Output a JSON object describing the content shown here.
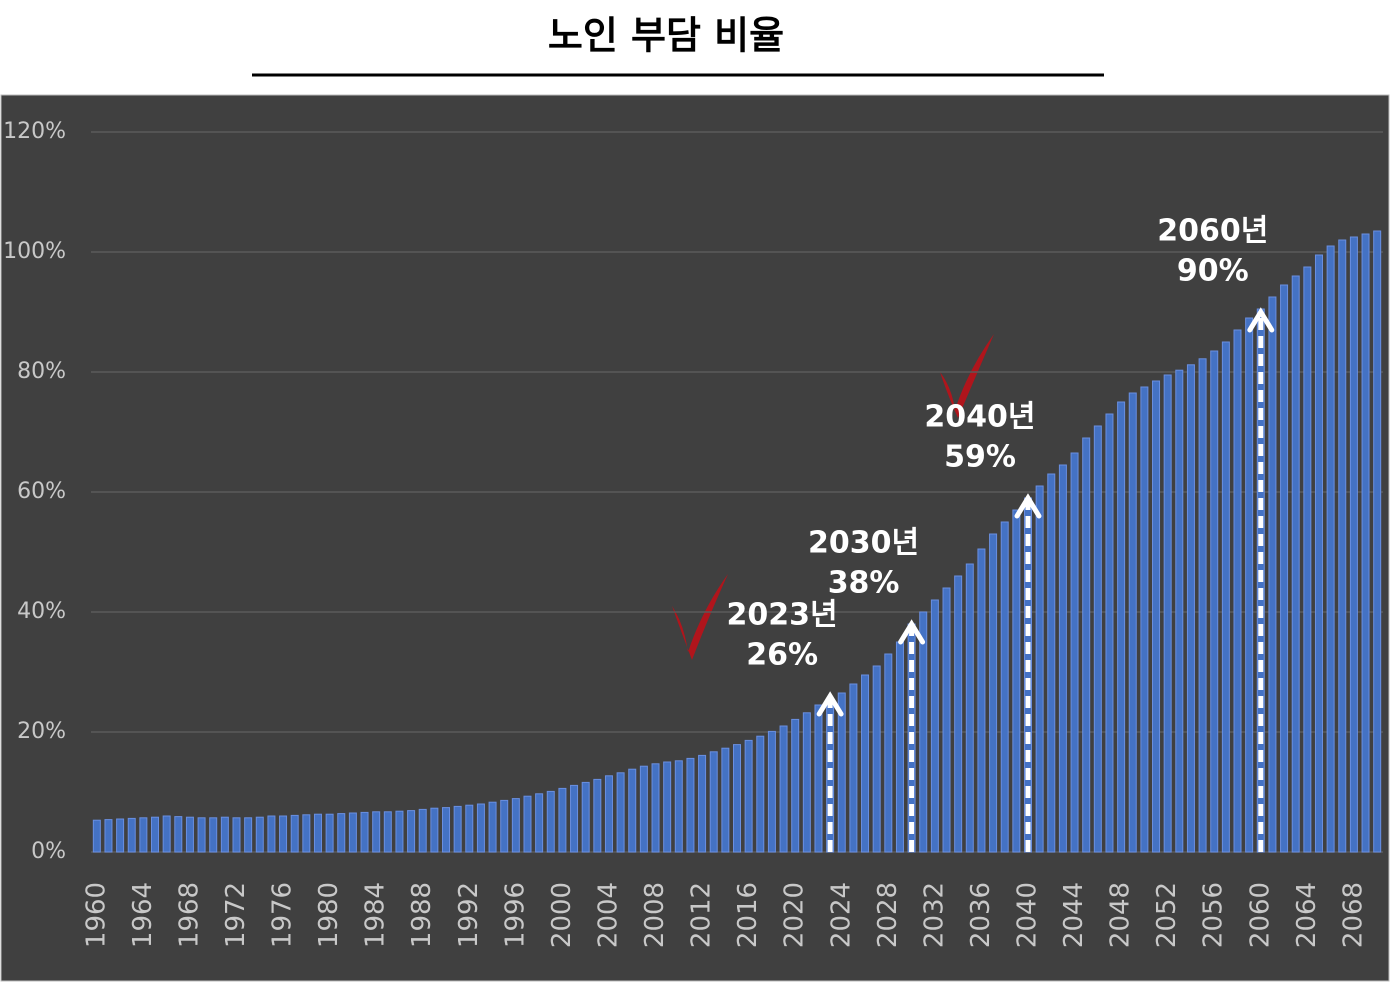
{
  "chart_data": {
    "type": "bar",
    "title": "노인 부담 비율",
    "x": [
      1960,
      1961,
      1962,
      1963,
      1964,
      1965,
      1966,
      1967,
      1968,
      1969,
      1970,
      1971,
      1972,
      1973,
      1974,
      1975,
      1976,
      1977,
      1978,
      1979,
      1980,
      1981,
      1982,
      1983,
      1984,
      1985,
      1986,
      1987,
      1988,
      1989,
      1990,
      1991,
      1992,
      1993,
      1994,
      1995,
      1996,
      1997,
      1998,
      1999,
      2000,
      2001,
      2002,
      2003,
      2004,
      2005,
      2006,
      2007,
      2008,
      2009,
      2010,
      2011,
      2012,
      2013,
      2014,
      2015,
      2016,
      2017,
      2018,
      2019,
      2020,
      2021,
      2022,
      2023,
      2024,
      2025,
      2026,
      2027,
      2028,
      2029,
      2030,
      2031,
      2032,
      2033,
      2034,
      2035,
      2036,
      2037,
      2038,
      2039,
      2040,
      2041,
      2042,
      2043,
      2044,
      2045,
      2046,
      2047,
      2048,
      2049,
      2050,
      2051,
      2052,
      2053,
      2054,
      2055,
      2056,
      2057,
      2058,
      2059,
      2060,
      2061,
      2062,
      2063,
      2064,
      2065,
      2066,
      2067,
      2068,
      2069,
      2070
    ],
    "values": [
      5.3,
      5.4,
      5.5,
      5.6,
      5.7,
      5.8,
      6.0,
      5.9,
      5.8,
      5.7,
      5.7,
      5.8,
      5.7,
      5.7,
      5.8,
      6.0,
      6.0,
      6.1,
      6.2,
      6.3,
      6.3,
      6.4,
      6.5,
      6.6,
      6.7,
      6.7,
      6.8,
      6.9,
      7.1,
      7.3,
      7.4,
      7.6,
      7.8,
      8.0,
      8.3,
      8.6,
      8.9,
      9.3,
      9.7,
      10.1,
      10.6,
      11.1,
      11.6,
      12.1,
      12.7,
      13.2,
      13.8,
      14.3,
      14.7,
      15.0,
      15.2,
      15.6,
      16.1,
      16.7,
      17.3,
      17.9,
      18.6,
      19.3,
      20.1,
      21.0,
      22.1,
      23.2,
      24.5,
      25.5,
      26.5,
      28,
      29.5,
      31,
      33,
      35,
      38,
      40,
      42,
      44,
      46,
      48,
      50.5,
      53,
      55,
      57,
      59,
      61,
      63,
      64.5,
      66.5,
      69,
      71,
      73,
      75,
      76.5,
      77.5,
      78.5,
      79.5,
      80.3,
      81.2,
      82.2,
      83.5,
      85,
      87,
      89,
      90.5,
      92.5,
      94.5,
      96,
      97.5,
      99.5,
      101,
      102,
      102.5,
      103,
      103.5
    ],
    "color": "#4472c4",
    "xlim": [
      1959.5,
      2070.5
    ],
    "xticks": [
      1960,
      1964,
      1968,
      1972,
      1976,
      1980,
      1984,
      1988,
      1992,
      1996,
      2000,
      2004,
      2008,
      2012,
      2016,
      2020,
      2024,
      2028,
      2032,
      2036,
      2040,
      2044,
      2048,
      2052,
      2056,
      2060,
      2064,
      2068
    ],
    "ylim": [
      0,
      120
    ],
    "yticks": [
      {
        "value": 0,
        "label": "0%"
      },
      {
        "value": 20,
        "label": "20%"
      },
      {
        "value": 40,
        "label": "40%"
      },
      {
        "value": 60,
        "label": "60%"
      },
      {
        "value": 80,
        "label": "80%"
      },
      {
        "value": 100,
        "label": "100%"
      },
      {
        "value": 120,
        "label": "120%"
      }
    ],
    "grid": true,
    "annotations": [
      {
        "x": 2023,
        "y": 26,
        "text": "2023년",
        "value_label": "26%"
      },
      {
        "x": 2030,
        "y": 38,
        "text": "2030년",
        "value_label": "38%"
      },
      {
        "x": 2040,
        "y": 59,
        "text": "2040년",
        "value_label": "59%"
      },
      {
        "x": 2060,
        "y": 90,
        "text": "2060년",
        "value_label": "90%"
      }
    ]
  }
}
